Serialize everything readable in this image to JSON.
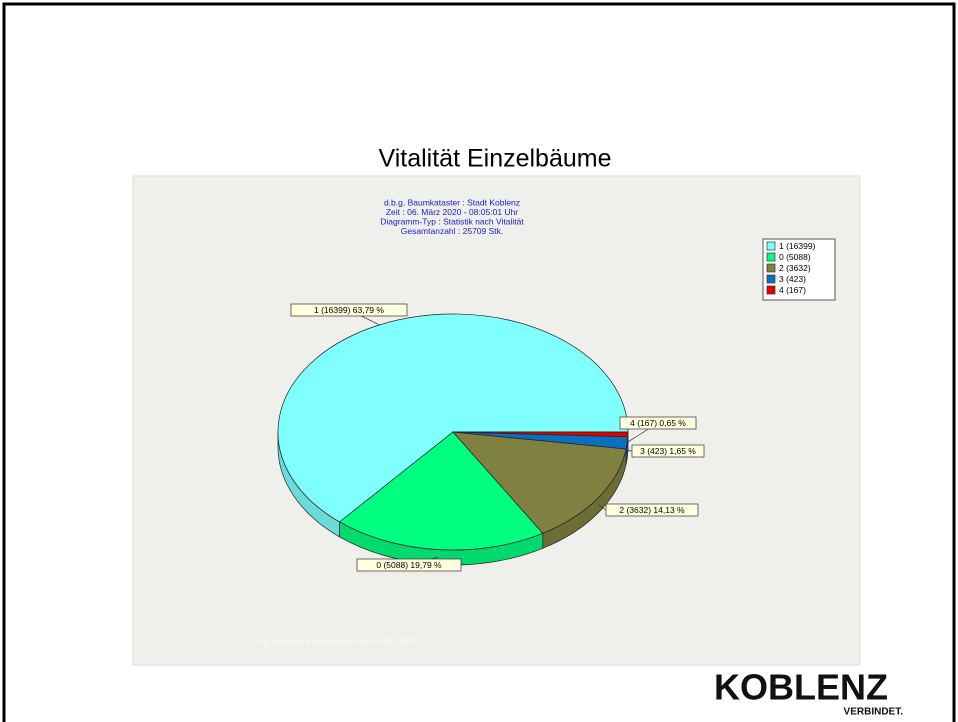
{
  "chart_data": {
    "type": "pie",
    "title": "Vitalität Einzelbäume",
    "subtitle": [
      "d.b.g. Baumkataster : Stadt Koblenz",
      "Zeit : 06. März 2020 - 08:05:01 Uhr",
      "Diagramm-Typ : Statistik nach Vitalität",
      "Gesamtanzahl : 25709 Stk."
    ],
    "categories": [
      "1 (16399)",
      "0 (5088)",
      "2 (3632)",
      "3 (423)",
      "4 (167)"
    ],
    "values": [
      16399,
      5088,
      3632,
      423,
      167
    ],
    "value_labels": [
      "1 (16399) 63,79 %",
      "0 (5088) 19,79 %",
      "2 (3632) 14,13 %",
      "3 (423) 1,65 %",
      "4 (167) 0,65 %"
    ],
    "colors": [
      "#80ffff",
      "#00ff80",
      "#808040",
      "#0a6fbf",
      "#e00000"
    ],
    "footer": "d.b.g. Datenbank gesellschaft mbH 1995-2020"
  },
  "logo": {
    "name": "KOBLENZ",
    "tagline": "VERBINDET."
  }
}
